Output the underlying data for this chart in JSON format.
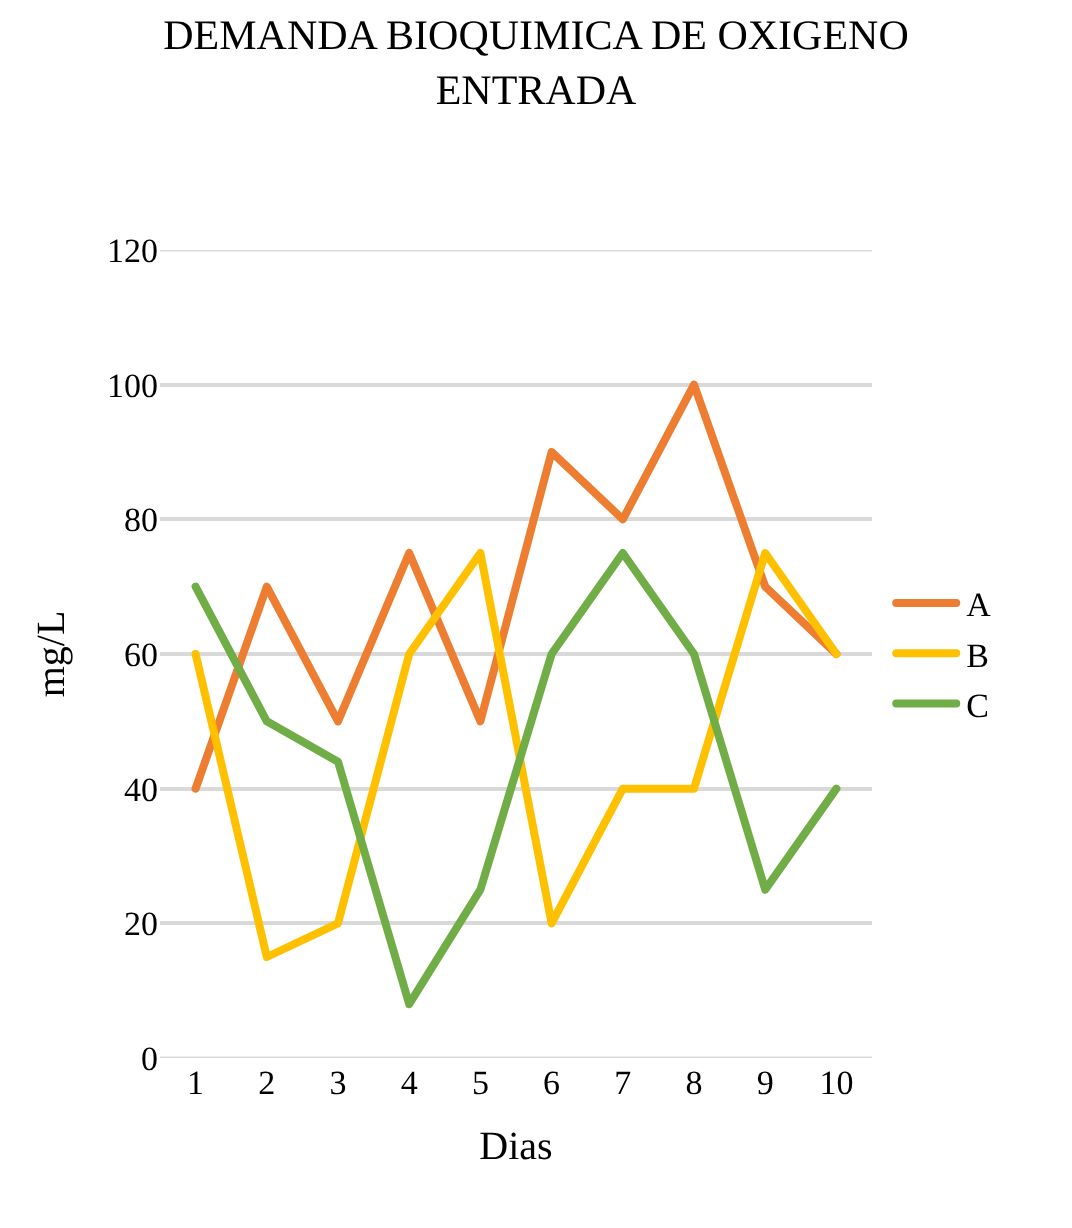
{
  "chart_data": {
    "type": "line",
    "title": "DEMANDA BIOQUIMICA DE OXIGENO\nENTRADA",
    "xlabel": "Dias",
    "ylabel": "mg/L",
    "categories": [
      "1",
      "2",
      "3",
      "4",
      "5",
      "6",
      "7",
      "8",
      "9",
      "10"
    ],
    "series": [
      {
        "name": "A",
        "color": "#ed7d31",
        "values": [
          40,
          70,
          50,
          75,
          50,
          90,
          80,
          100,
          70,
          60
        ]
      },
      {
        "name": "B",
        "color": "#ffc000",
        "values": [
          60,
          15,
          20,
          60,
          75,
          20,
          40,
          40,
          75,
          60
        ]
      },
      {
        "name": "C",
        "color": "#70ad47",
        "values": [
          70,
          50,
          44,
          8,
          25,
          60,
          75,
          60,
          25,
          40
        ]
      }
    ],
    "ylim": [
      0,
      120
    ],
    "yticks": [
      0,
      20,
      40,
      60,
      80,
      100,
      120
    ],
    "grid": "y",
    "legend": "right",
    "marker": "none",
    "line_style": "solid"
  }
}
